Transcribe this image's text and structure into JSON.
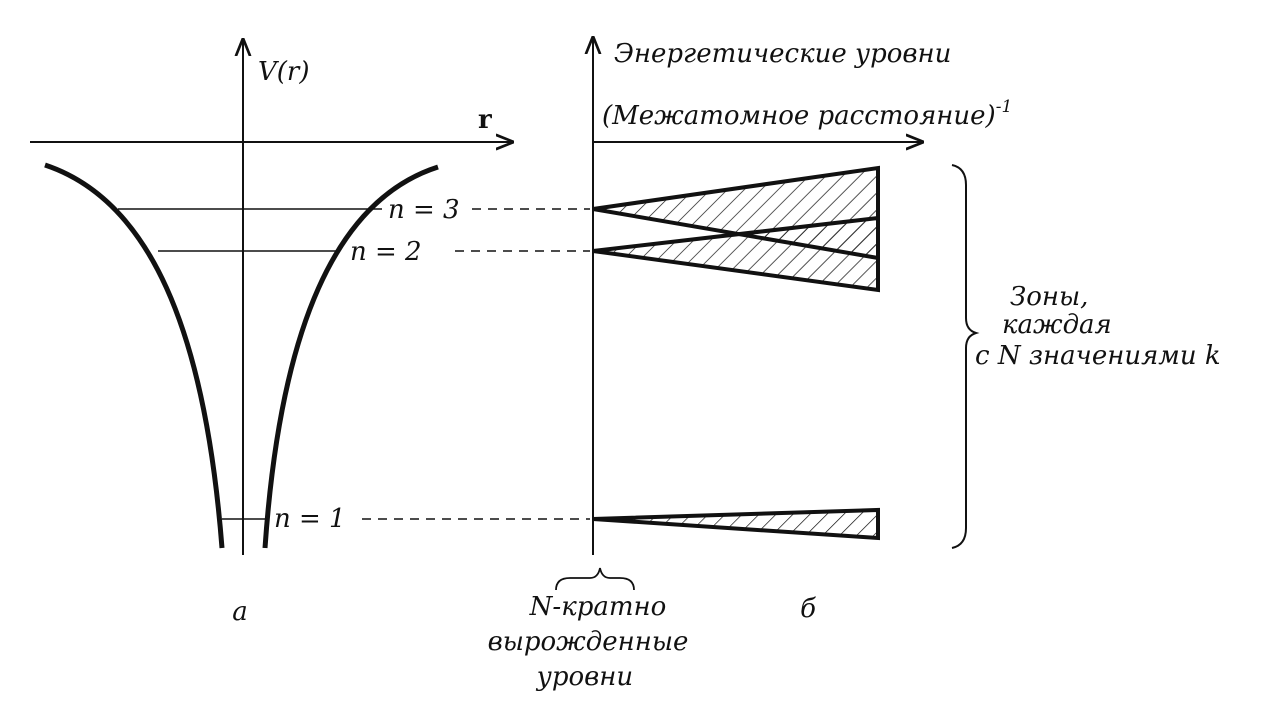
{
  "panel_a": {
    "y_axis_label": "V(r)",
    "x_axis_label": "r",
    "levels": [
      "n = 3",
      "n = 2",
      "n = 1"
    ],
    "caption": "а"
  },
  "panel_b": {
    "y_axis_label": "Энергетические уровни",
    "x_axis_label": "(Межатомное расстояние)",
    "x_axis_exponent": "-1",
    "caption": "б",
    "degenerate_note": [
      "N-кратно",
      "вырожденные",
      "уровни"
    ],
    "bands_note": [
      "Зоны,",
      "каждая",
      "с N значениями k"
    ]
  }
}
